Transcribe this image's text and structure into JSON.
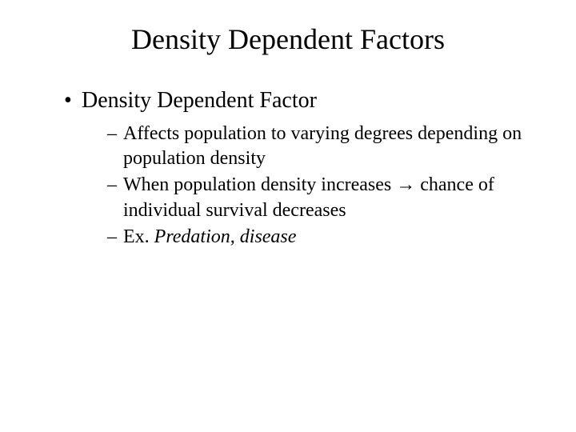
{
  "slide": {
    "background_color": "#ffffff",
    "text_color": "#000000",
    "font_family": "Times New Roman",
    "title": {
      "text": "Density Dependent Factors",
      "fontsize": 36,
      "align": "center"
    },
    "bullets": {
      "level1": [
        {
          "text": "Density Dependent Factor",
          "fontsize": 28,
          "marker": "•"
        }
      ],
      "level2": [
        {
          "text": "Affects population to varying degrees depending on population density",
          "fontsize": 24,
          "marker": "–",
          "italic": false
        },
        {
          "text_pre": "When population density increases ",
          "arrow": "→",
          "text_post": " chance of individual survival decreases",
          "fontsize": 24,
          "marker": "–",
          "italic": false
        },
        {
          "text_prefix": "Ex.  ",
          "text_italic": "Predation, disease",
          "fontsize": 24,
          "marker": "–",
          "italic": true
        }
      ]
    }
  }
}
